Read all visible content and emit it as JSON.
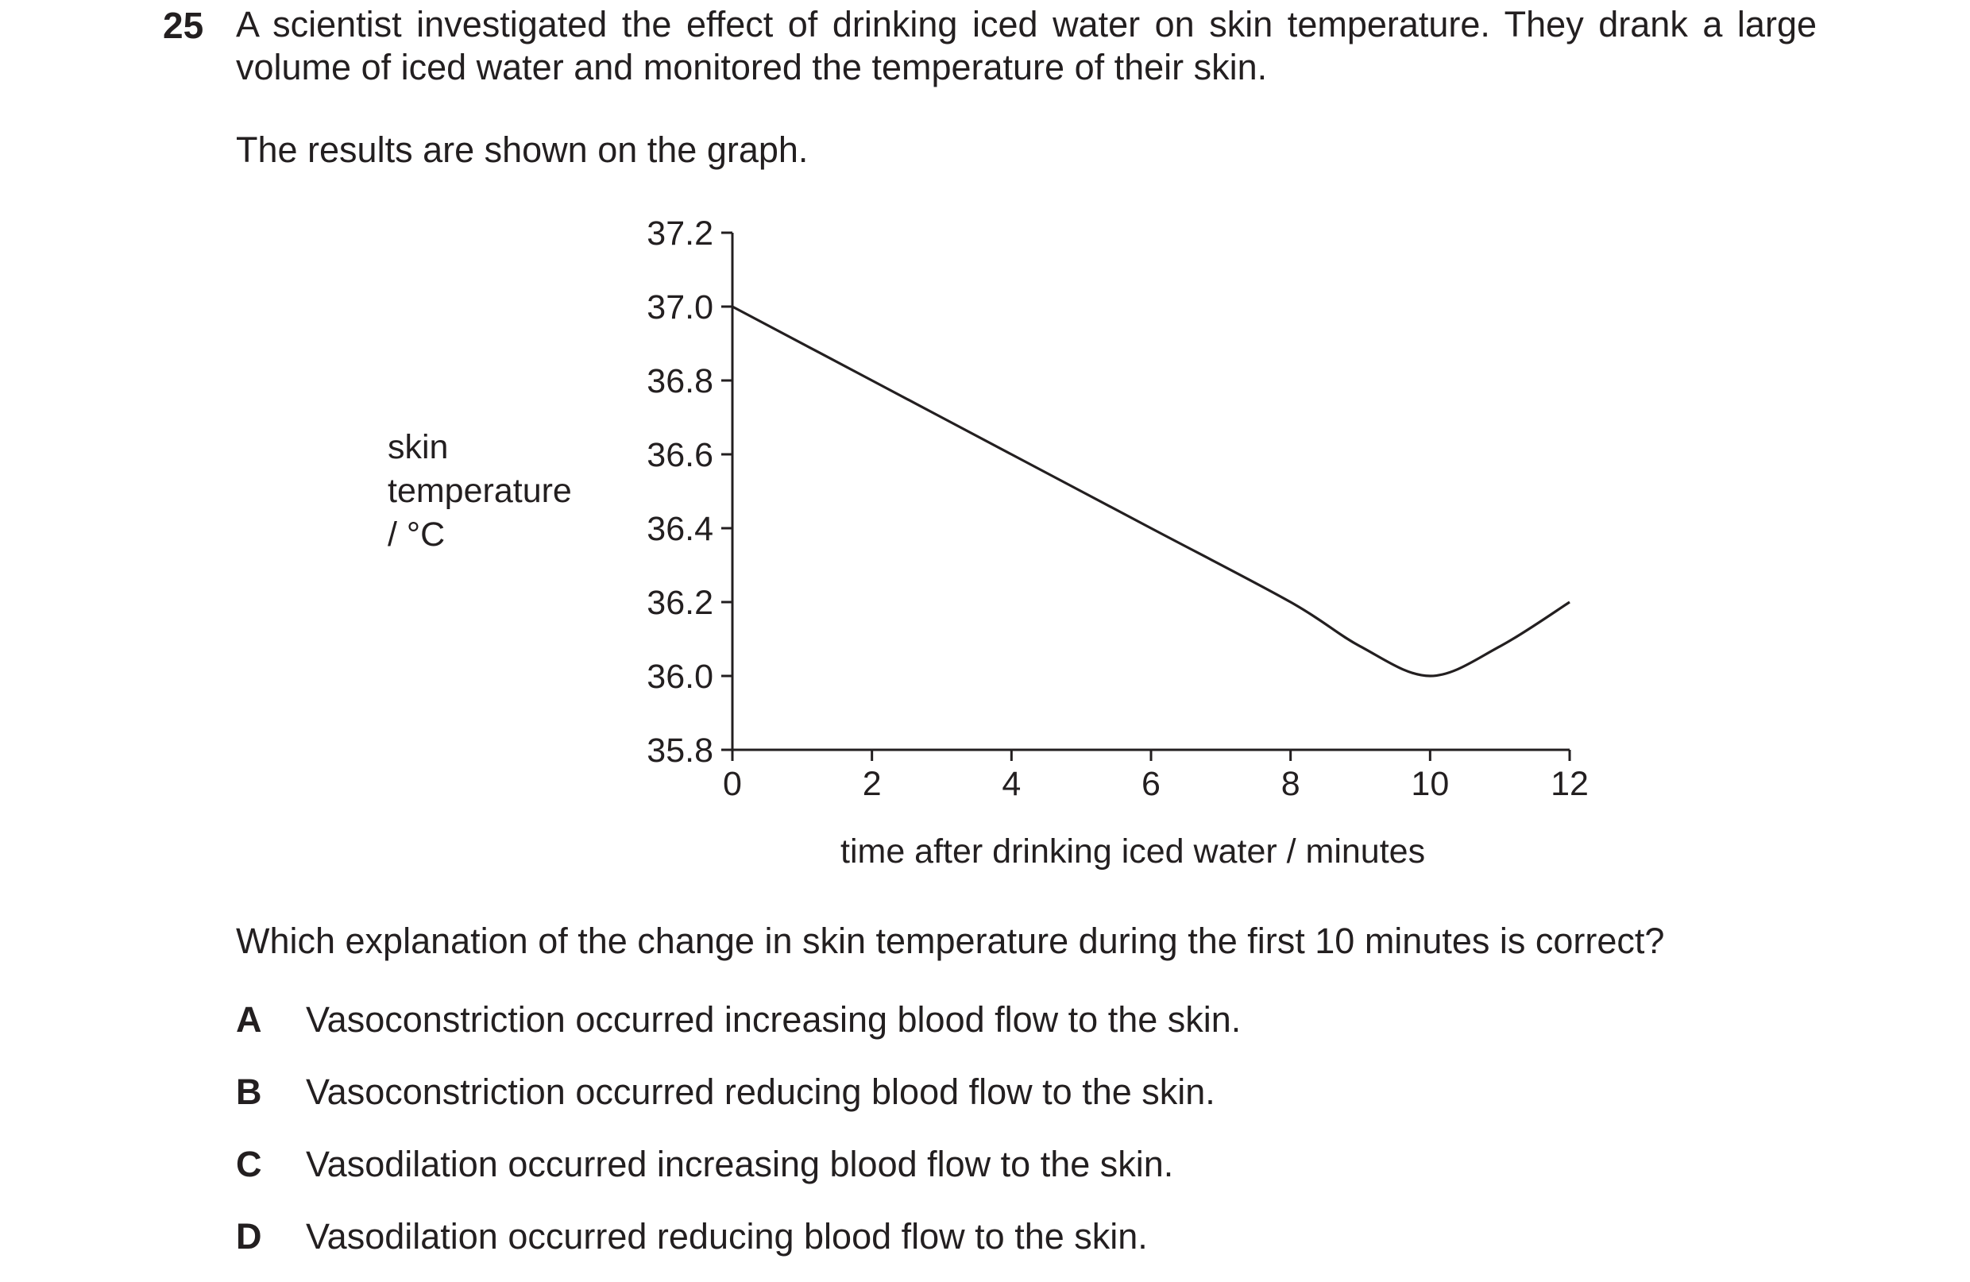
{
  "question": {
    "number": "25",
    "intro": "A scientist investigated the effect of drinking iced water on skin temperature. They drank a large volume of iced water and monitored the temperature of their skin.",
    "intro2": "The results are shown on the graph.",
    "prompt": "Which explanation of the change in skin temperature during the first 10 minutes is correct?",
    "options": [
      {
        "letter": "A",
        "text": "Vasoconstriction occurred increasing blood flow to the skin."
      },
      {
        "letter": "B",
        "text": "Vasoconstriction occurred reducing blood flow to the skin."
      },
      {
        "letter": "C",
        "text": "Vasodilation occurred increasing blood flow to the skin."
      },
      {
        "letter": "D",
        "text": "Vasodilation occurred reducing blood flow to the skin."
      }
    ]
  },
  "chart_data": {
    "type": "line",
    "ylabel_lines": [
      "skin",
      "temperature",
      "/ °C"
    ],
    "xlabel": "time after drinking iced water / minutes",
    "xlim": [
      0,
      12
    ],
    "ylim": [
      35.8,
      37.2
    ],
    "x_ticks": [
      "0",
      "2",
      "4",
      "6",
      "8",
      "10",
      "12"
    ],
    "y_ticks": [
      "35.8",
      "36.0",
      "36.2",
      "36.4",
      "36.6",
      "36.8",
      "37.0",
      "37.2"
    ],
    "grid": false,
    "line_color": "#231f20",
    "series": [
      {
        "x": [
          0,
          2,
          4,
          6,
          8,
          9,
          10,
          11,
          12
        ],
        "y": [
          37.0,
          36.8,
          36.6,
          36.4,
          36.2,
          36.08,
          36.0,
          36.08,
          36.2
        ]
      }
    ]
  }
}
